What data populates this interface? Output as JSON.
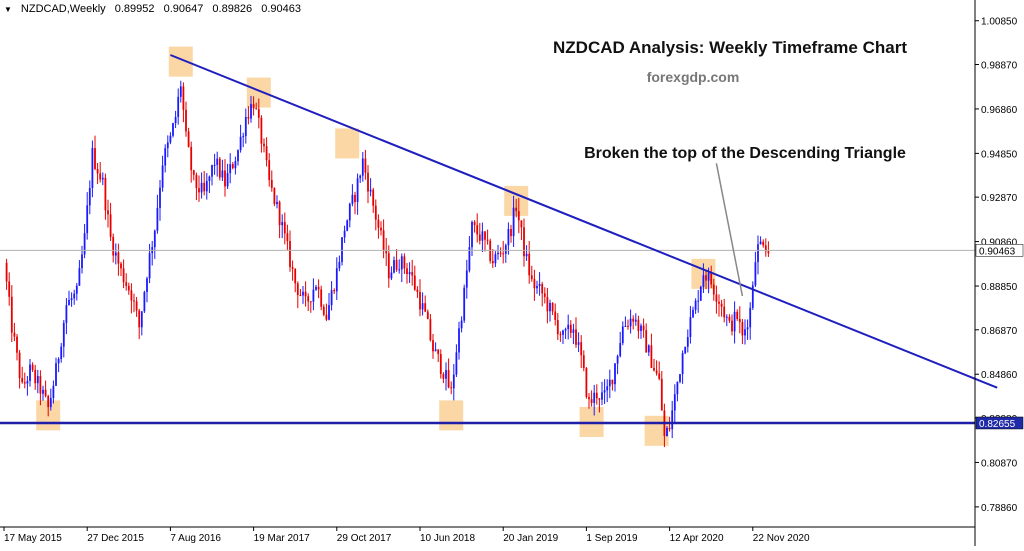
{
  "header": {
    "symbol": "NZDCAD,Weekly",
    "open": "0.89952",
    "high": "0.90647",
    "low": "0.89826",
    "close": "0.90463"
  },
  "colors": {
    "bull": "#1a1aff",
    "bear": "#e60000",
    "trendline": "#1f1fbf",
    "support": "#1e1ea8",
    "highlight": "#fbd7a6",
    "arrow": "#888888"
  },
  "chart_data": {
    "type": "candlestick",
    "title": "NZDCAD Analysis: Weekly Timeframe Chart",
    "subtitle": "forexgdp.com",
    "annotation": "Broken the top of the Descending Triangle",
    "xlabel": "",
    "ylabel": "",
    "ylim": [
      0.7795,
      1.012
    ],
    "y_ticks": [
      "1.00850",
      "0.98870",
      "0.96860",
      "0.94850",
      "0.92870",
      "0.90860",
      "0.88850",
      "0.86870",
      "0.84860",
      "0.82880",
      "0.80870",
      "0.78860"
    ],
    "x_ticks": [
      "17 May 2015",
      "27 Dec 2015",
      "7 Aug 2016",
      "19 Mar 2017",
      "29 Oct 2017",
      "10 Jun 2018",
      "20 Jan 2019",
      "1 Sep 2019",
      "12 Apr 2020",
      "22 Nov 2020"
    ],
    "x_tick_index": [
      0,
      32,
      64,
      96,
      128,
      160,
      192,
      224,
      256,
      288
    ],
    "current_price": "0.90463",
    "support_level": "0.82655",
    "support_value": 0.82655,
    "trendline": {
      "from_index": 64,
      "from_value": 0.993,
      "to_index": 382,
      "to_value": 0.8425
    },
    "price_path": [
      [
        0,
        0.899
      ],
      [
        3,
        0.87
      ],
      [
        7,
        0.842
      ],
      [
        10,
        0.85
      ],
      [
        14,
        0.842
      ],
      [
        17,
        0.833
      ],
      [
        20,
        0.85
      ],
      [
        24,
        0.88
      ],
      [
        28,
        0.885
      ],
      [
        31,
        0.91
      ],
      [
        34,
        0.948
      ],
      [
        38,
        0.935
      ],
      [
        41,
        0.91
      ],
      [
        45,
        0.895
      ],
      [
        49,
        0.885
      ],
      [
        52,
        0.87
      ],
      [
        55,
        0.895
      ],
      [
        58,
        0.915
      ],
      [
        61,
        0.945
      ],
      [
        64,
        0.955
      ],
      [
        66,
        0.965
      ],
      [
        68,
        0.98
      ],
      [
        70,
        0.955
      ],
      [
        73,
        0.935
      ],
      [
        77,
        0.93
      ],
      [
        81,
        0.945
      ],
      [
        85,
        0.935
      ],
      [
        90,
        0.95
      ],
      [
        93,
        0.965
      ],
      [
        96,
        0.972
      ],
      [
        99,
        0.955
      ],
      [
        102,
        0.935
      ],
      [
        106,
        0.92
      ],
      [
        109,
        0.905
      ],
      [
        112,
        0.89
      ],
      [
        116,
        0.88
      ],
      [
        120,
        0.89
      ],
      [
        124,
        0.875
      ],
      [
        128,
        0.895
      ],
      [
        131,
        0.915
      ],
      [
        135,
        0.93
      ],
      [
        138,
        0.945
      ],
      [
        141,
        0.93
      ],
      [
        144,
        0.915
      ],
      [
        148,
        0.895
      ],
      [
        152,
        0.9
      ],
      [
        156,
        0.895
      ],
      [
        159,
        0.885
      ],
      [
        162,
        0.875
      ],
      [
        165,
        0.86
      ],
      [
        169,
        0.85
      ],
      [
        172,
        0.84
      ],
      [
        174,
        0.86
      ],
      [
        177,
        0.885
      ],
      [
        180,
        0.915
      ],
      [
        184,
        0.91
      ],
      [
        188,
        0.9
      ],
      [
        192,
        0.905
      ],
      [
        195,
        0.915
      ],
      [
        197,
        0.925
      ],
      [
        200,
        0.905
      ],
      [
        203,
        0.89
      ],
      [
        207,
        0.885
      ],
      [
        211,
        0.875
      ],
      [
        215,
        0.865
      ],
      [
        219,
        0.87
      ],
      [
        222,
        0.855
      ],
      [
        225,
        0.835
      ],
      [
        228,
        0.84
      ],
      [
        231,
        0.838
      ],
      [
        234,
        0.848
      ],
      [
        238,
        0.87
      ],
      [
        242,
        0.875
      ],
      [
        246,
        0.865
      ],
      [
        249,
        0.855
      ],
      [
        252,
        0.845
      ],
      [
        254,
        0.82
      ],
      [
        256,
        0.825
      ],
      [
        259,
        0.845
      ],
      [
        262,
        0.865
      ],
      [
        266,
        0.88
      ],
      [
        269,
        0.895
      ],
      [
        272,
        0.89
      ],
      [
        276,
        0.88
      ],
      [
        279,
        0.87
      ],
      [
        282,
        0.875
      ],
      [
        284,
        0.865
      ],
      [
        287,
        0.878
      ],
      [
        289,
        0.903
      ],
      [
        292,
        0.91
      ],
      [
        294,
        0.9046
      ]
    ],
    "highlight_zones": [
      {
        "index": 17,
        "value": 0.83
      },
      {
        "index": 68,
        "value": 0.99
      },
      {
        "index": 98,
        "value": 0.976
      },
      {
        "index": 132,
        "value": 0.953
      },
      {
        "index": 172,
        "value": 0.83
      },
      {
        "index": 197,
        "value": 0.927
      },
      {
        "index": 226,
        "value": 0.827
      },
      {
        "index": 251,
        "value": 0.823
      },
      {
        "index": 269,
        "value": 0.894
      }
    ],
    "annotation_arrow": {
      "from_index": 274,
      "from_value": 0.944,
      "to_index": 284,
      "to_value": 0.884
    }
  }
}
